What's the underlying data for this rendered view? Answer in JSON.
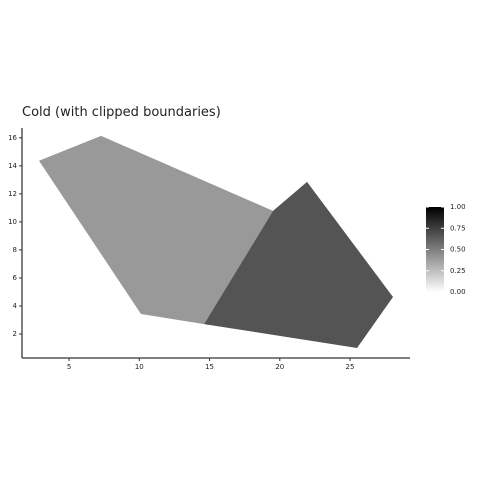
{
  "chart_data": {
    "type": "polygon",
    "title": "Cold (with clipped boundaries)",
    "polygons": [
      {
        "value": 0.4,
        "x": [
          2.86,
          7.28,
          19.52,
          14.61,
          10.12
        ],
        "y": [
          14.36,
          16.14,
          10.79,
          2.71,
          3.43
        ]
      },
      {
        "value": 0.67,
        "x": [
          14.61,
          19.52,
          21.94,
          28.06,
          25.5
        ],
        "y": [
          2.71,
          10.79,
          12.86,
          4.64,
          1.0
        ]
      }
    ],
    "color_low": "#ffffff",
    "color_high": "#000000",
    "xlim": [
      1.65,
      29.27
    ],
    "xticks": [
      5,
      10,
      15,
      20,
      25
    ],
    "ylim": [
      0.29,
      16.7
    ],
    "yticks": [
      2,
      4,
      6,
      8,
      10,
      12,
      14,
      16
    ],
    "colorbar_lim": [
      0,
      1
    ],
    "colorbar_ticks": [
      {
        "value": 0,
        "label": "0.00"
      },
      {
        "value": 0.25,
        "label": "0.25"
      },
      {
        "value": 0.5,
        "label": "0.50"
      },
      {
        "value": 0.75,
        "label": "0.75"
      },
      {
        "value": 1,
        "label": "1.00"
      }
    ]
  }
}
